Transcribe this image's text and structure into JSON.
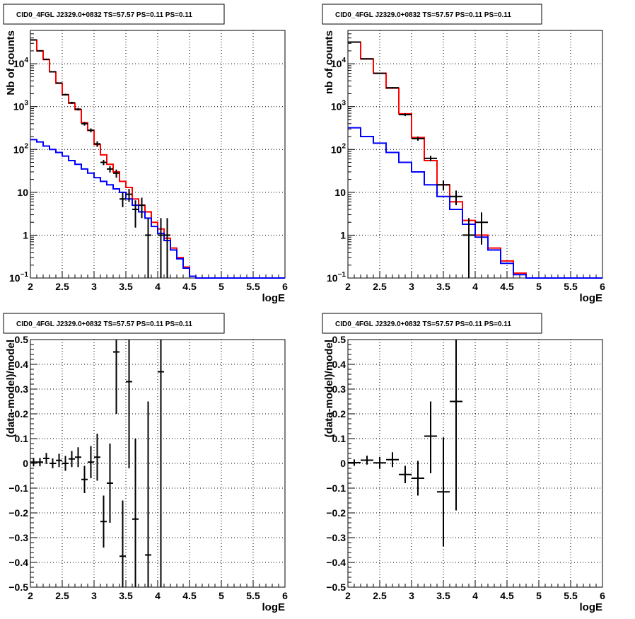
{
  "colors": {
    "model_total": "#ff0000",
    "model_background": "#0000ff",
    "data": "#000000",
    "grid": "#000000"
  },
  "chart_data": [
    {
      "type": "line",
      "panel": "top-left",
      "title": "CID0_4FGL J2329.0+0832 TS=57.57 PS=0.11 PS=0.11",
      "xlabel": "logE",
      "ylabel": "Nb of counts",
      "xlim": [
        2,
        6
      ],
      "ylim": [
        0.1,
        60000
      ],
      "yscale": "log",
      "grid": true,
      "x_ticks": [
        "2",
        "2.5",
        "3",
        "3.5",
        "4",
        "4.5",
        "5",
        "5.5",
        "6"
      ],
      "y_ticks": [
        {
          "value": 0.1,
          "label": "10",
          "exp": "−1"
        },
        {
          "value": 1,
          "label": "1",
          "exp": ""
        },
        {
          "value": 10,
          "label": "10",
          "exp": ""
        },
        {
          "value": 100,
          "label": "10",
          "exp": "2"
        },
        {
          "value": 1000,
          "label": "10",
          "exp": "3"
        },
        {
          "value": 10000,
          "label": "10",
          "exp": "4"
        }
      ],
      "bin_edges": [
        2.0,
        2.1,
        2.2,
        2.3,
        2.4,
        2.5,
        2.6,
        2.7,
        2.8,
        2.9,
        3.0,
        3.1,
        3.2,
        3.3,
        3.4,
        3.5,
        3.6,
        3.7,
        3.8,
        3.9,
        4.0,
        4.1,
        4.2,
        4.3,
        4.4,
        4.5,
        4.6,
        4.7,
        4.8,
        4.9,
        5.0,
        5.1,
        5.2,
        5.3,
        5.4,
        5.5,
        5.6,
        5.7,
        5.8,
        5.9,
        6.0
      ],
      "series": [
        {
          "role": "model_total",
          "values": [
            36000,
            20000,
            12500,
            6500,
            3500,
            1900,
            1200,
            850,
            420,
            280,
            130,
            75,
            45,
            30,
            18,
            13,
            7,
            5,
            3.5,
            2.0,
            1.4,
            0.85,
            0.5,
            0.3,
            0.18,
            0.11,
            0.1,
            0.1,
            0.1,
            0.1,
            0.1,
            0.1,
            0.1,
            0.1,
            0.1,
            0.1,
            0.1,
            0.1,
            0.1,
            0.1
          ]
        },
        {
          "role": "model_background",
          "values": [
            170,
            150,
            120,
            100,
            85,
            70,
            55,
            45,
            35,
            28,
            22,
            18,
            15,
            12,
            10,
            7,
            5,
            3.5,
            2.5,
            1.6,
            1.1,
            0.75,
            0.45,
            0.28,
            0.17,
            0.11,
            0.1,
            0.1,
            0.1,
            0.1,
            0.1,
            0.1,
            0.1,
            0.1,
            0.1,
            0.1,
            0.1,
            0.1,
            0.1,
            0.1
          ]
        },
        {
          "role": "data",
          "points": [
            {
              "x": 2.05,
              "y": 36000,
              "lo": 35600,
              "hi": 36400
            },
            {
              "x": 2.15,
              "y": 20000,
              "lo": 19700,
              "hi": 20300
            },
            {
              "x": 2.25,
              "y": 12700,
              "lo": 12450,
              "hi": 12950
            },
            {
              "x": 2.35,
              "y": 6500,
              "lo": 6330,
              "hi": 6670
            },
            {
              "x": 2.45,
              "y": 3550,
              "lo": 3430,
              "hi": 3670
            },
            {
              "x": 2.55,
              "y": 1900,
              "lo": 1810,
              "hi": 1990
            },
            {
              "x": 2.65,
              "y": 1230,
              "lo": 1160,
              "hi": 1300
            },
            {
              "x": 2.75,
              "y": 870,
              "lo": 810,
              "hi": 930
            },
            {
              "x": 2.85,
              "y": 400,
              "lo": 360,
              "hi": 440
            },
            {
              "x": 2.95,
              "y": 280,
              "lo": 250,
              "hi": 310
            },
            {
              "x": 3.05,
              "y": 135,
              "lo": 115,
              "hi": 155
            },
            {
              "x": 3.15,
              "y": 50,
              "lo": 43,
              "hi": 57
            },
            {
              "x": 3.25,
              "y": 35,
              "lo": 29,
              "hi": 41
            },
            {
              "x": 3.35,
              "y": 28,
              "lo": 22,
              "hi": 34
            },
            {
              "x": 3.45,
              "y": 7,
              "lo": 4.5,
              "hi": 10
            },
            {
              "x": 3.55,
              "y": 9,
              "lo": 6,
              "hi": 12
            },
            {
              "x": 3.65,
              "y": 4,
              "lo": 1.5,
              "hi": 6.5
            },
            {
              "x": 3.75,
              "y": 5,
              "lo": 2.5,
              "hi": 7.5
            },
            {
              "x": 3.85,
              "y": 1,
              "lo": 0.1,
              "hi": 2.5
            },
            {
              "x": 4.05,
              "y": 1,
              "lo": 0.1,
              "hi": 2.5
            },
            {
              "x": 4.15,
              "y": 1,
              "lo": 0.1,
              "hi": 2.5
            }
          ]
        }
      ]
    },
    {
      "type": "line",
      "panel": "top-right",
      "title": "CID0_4FGL J2329.0+0832 TS=57.57 PS=0.11 PS=0.11",
      "xlabel": "logE",
      "ylabel": "nb of counts",
      "xlim": [
        2,
        6
      ],
      "ylim": [
        0.1,
        60000
      ],
      "yscale": "log",
      "grid": true,
      "x_ticks": [
        "2",
        "2.5",
        "3",
        "3.5",
        "4",
        "4.5",
        "5",
        "5.5",
        "6"
      ],
      "y_ticks": [
        {
          "value": 0.1,
          "label": "10",
          "exp": "−1"
        },
        {
          "value": 1,
          "label": "1",
          "exp": ""
        },
        {
          "value": 10,
          "label": "10",
          "exp": ""
        },
        {
          "value": 100,
          "label": "10",
          "exp": "2"
        },
        {
          "value": 1000,
          "label": "10",
          "exp": "3"
        },
        {
          "value": 10000,
          "label": "10",
          "exp": "4"
        }
      ],
      "bin_edges": [
        2.0,
        2.2,
        2.4,
        2.6,
        2.8,
        3.0,
        3.2,
        3.4,
        3.6,
        3.8,
        4.0,
        4.2,
        4.4,
        4.6,
        4.8,
        5.0,
        5.2,
        5.4,
        5.6,
        5.8,
        6.0
      ],
      "series": [
        {
          "role": "model_total",
          "values": [
            32000,
            13000,
            6000,
            2700,
            680,
            190,
            55,
            15,
            6,
            2.2,
            1.0,
            0.5,
            0.25,
            0.13,
            0.1,
            0.1,
            0.1,
            0.1,
            0.1,
            0.1
          ]
        },
        {
          "role": "model_background",
          "values": [
            320,
            200,
            140,
            85,
            50,
            30,
            15,
            8,
            4,
            1.8,
            0.9,
            0.45,
            0.22,
            0.12,
            0.1,
            0.1,
            0.1,
            0.1,
            0.1,
            0.1
          ]
        },
        {
          "role": "data",
          "points": [
            {
              "x": 2.1,
              "y": 32000,
              "lo": 31700,
              "hi": 32300
            },
            {
              "x": 2.3,
              "y": 13000,
              "lo": 12800,
              "hi": 13200
            },
            {
              "x": 2.5,
              "y": 6000,
              "lo": 5850,
              "hi": 6150
            },
            {
              "x": 2.7,
              "y": 2750,
              "lo": 2650,
              "hi": 2850
            },
            {
              "x": 2.9,
              "y": 650,
              "lo": 600,
              "hi": 700
            },
            {
              "x": 3.1,
              "y": 180,
              "lo": 160,
              "hi": 200
            },
            {
              "x": 3.3,
              "y": 62,
              "lo": 53,
              "hi": 71
            },
            {
              "x": 3.5,
              "y": 15,
              "lo": 11,
              "hi": 19
            },
            {
              "x": 3.7,
              "y": 8,
              "lo": 5,
              "hi": 11
            },
            {
              "x": 3.9,
              "y": 1,
              "lo": 0.1,
              "hi": 2.5
            },
            {
              "x": 4.1,
              "y": 2,
              "lo": 0.6,
              "hi": 3.4
            }
          ]
        }
      ]
    },
    {
      "type": "scatter",
      "panel": "bottom-left",
      "title": "CID0_4FGL J2329.0+0832 TS=57.57 PS=0.11 PS=0.11",
      "xlabel": "logE",
      "ylabel": "(data-model)/model",
      "xlim": [
        2,
        6
      ],
      "ylim": [
        -0.5,
        0.5
      ],
      "yscale": "linear",
      "grid": true,
      "x_ticks": [
        "2",
        "2.5",
        "3",
        "3.5",
        "4",
        "4.5",
        "5",
        "5.5",
        "6"
      ],
      "y_ticks_linear": [
        "−0.5",
        "−0.4",
        "−0.3",
        "−0.2",
        "−0.1",
        "0",
        "0.1",
        "0.2",
        "0.3",
        "0.4",
        "0.5"
      ],
      "points": [
        {
          "x": 2.05,
          "y": 0.005,
          "lo": -0.012,
          "hi": 0.022
        },
        {
          "x": 2.15,
          "y": 0.005,
          "lo": -0.012,
          "hi": 0.022
        },
        {
          "x": 2.25,
          "y": 0.02,
          "lo": -0.002,
          "hi": 0.042
        },
        {
          "x": 2.35,
          "y": 0.0,
          "lo": -0.02,
          "hi": 0.02
        },
        {
          "x": 2.45,
          "y": 0.012,
          "lo": -0.015,
          "hi": 0.039
        },
        {
          "x": 2.55,
          "y": 0.0,
          "lo": -0.03,
          "hi": 0.03
        },
        {
          "x": 2.65,
          "y": 0.018,
          "lo": -0.015,
          "hi": 0.05
        },
        {
          "x": 2.75,
          "y": 0.025,
          "lo": -0.015,
          "hi": 0.065
        },
        {
          "x": 2.85,
          "y": -0.065,
          "lo": -0.12,
          "hi": -0.01
        },
        {
          "x": 2.95,
          "y": 0.005,
          "lo": -0.06,
          "hi": 0.07
        },
        {
          "x": 3.05,
          "y": 0.025,
          "lo": -0.07,
          "hi": 0.12
        },
        {
          "x": 3.15,
          "y": -0.235,
          "lo": -0.34,
          "hi": -0.13
        },
        {
          "x": 3.25,
          "y": -0.08,
          "lo": -0.24,
          "hi": 0.08
        },
        {
          "x": 3.35,
          "y": 0.45,
          "lo": 0.2,
          "hi": 0.5
        },
        {
          "x": 3.45,
          "y": -0.375,
          "lo": -0.5,
          "hi": -0.15
        },
        {
          "x": 3.55,
          "y": 0.33,
          "lo": -0.02,
          "hi": 0.5
        },
        {
          "x": 3.65,
          "y": -0.225,
          "lo": -0.5,
          "hi": 0.1
        },
        {
          "x": 3.85,
          "y": -0.37,
          "lo": -0.5,
          "hi": 0.25
        },
        {
          "x": 4.05,
          "y": 0.37,
          "lo": -0.5,
          "hi": 0.5
        }
      ]
    },
    {
      "type": "scatter",
      "panel": "bottom-right",
      "title": "CID0_4FGL J2329.0+0832 TS=57.57 PS=0.11 PS=0.11",
      "xlabel": "logE",
      "ylabel": "(data-model)/model",
      "xlim": [
        2,
        6
      ],
      "ylim": [
        -0.5,
        0.5
      ],
      "yscale": "linear",
      "grid": true,
      "x_ticks": [
        "2",
        "2.5",
        "3",
        "3.5",
        "4",
        "4.5",
        "5",
        "5.5",
        "6"
      ],
      "y_ticks_linear": [
        "−0.5",
        "−0.4",
        "−0.3",
        "−0.2",
        "−0.1",
        "0",
        "0.1",
        "0.2",
        "0.3",
        "0.4",
        "0.5"
      ],
      "points": [
        {
          "x": 2.1,
          "y": 0.003,
          "lo": -0.01,
          "hi": 0.016
        },
        {
          "x": 2.3,
          "y": 0.013,
          "lo": -0.005,
          "hi": 0.031
        },
        {
          "x": 2.5,
          "y": 0.002,
          "lo": -0.022,
          "hi": 0.026
        },
        {
          "x": 2.7,
          "y": 0.015,
          "lo": -0.015,
          "hi": 0.045
        },
        {
          "x": 2.9,
          "y": -0.045,
          "lo": -0.08,
          "hi": -0.01
        },
        {
          "x": 3.1,
          "y": -0.06,
          "lo": -0.13,
          "hi": 0.01
        },
        {
          "x": 3.3,
          "y": 0.11,
          "lo": -0.04,
          "hi": 0.25
        },
        {
          "x": 3.5,
          "y": -0.115,
          "lo": -0.335,
          "hi": 0.105
        },
        {
          "x": 3.7,
          "y": 0.25,
          "lo": -0.19,
          "hi": 0.5
        }
      ]
    }
  ]
}
